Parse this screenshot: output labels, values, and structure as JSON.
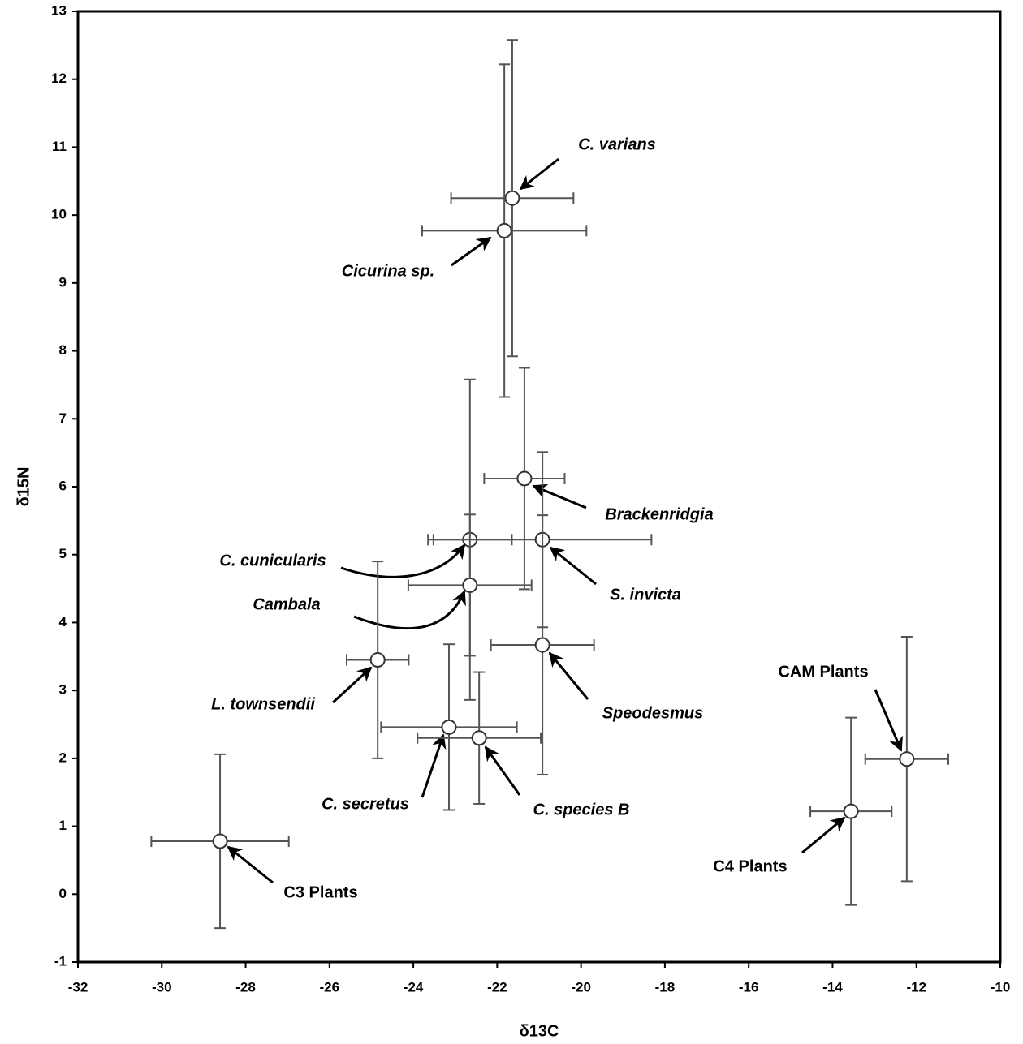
{
  "chart_data": {
    "type": "scatter",
    "xlabel": "δ13C",
    "ylabel": "δ15N",
    "xlim": [
      -32,
      -10
    ],
    "xticks": [
      -32,
      -30,
      -28,
      -26,
      -24,
      -22,
      -20,
      -18,
      -16,
      -14,
      -12,
      -10
    ],
    "ylim": [
      -1,
      13
    ],
    "yticks": [
      -1,
      0,
      1,
      2,
      3,
      4,
      5,
      6,
      7,
      8,
      9,
      10,
      11,
      12,
      13
    ],
    "color": "#ffffff",
    "points": [
      {
        "name": "C. varians",
        "italic": true,
        "x": -21.64,
        "y": 10.25,
        "xerr": 1.46,
        "yerr": 2.33
      },
      {
        "name": "Cicurina sp.",
        "italic": true,
        "x": -21.83,
        "y": 9.77,
        "xerr": 1.96,
        "yerr": 2.45
      },
      {
        "name": "Brackenridgia",
        "italic": true,
        "x": -21.35,
        "y": 6.12,
        "xerr": 0.96,
        "yerr": 1.63
      },
      {
        "name": "C. cunicularis",
        "italic": true,
        "x": -22.65,
        "y": 5.22,
        "xerr": 1.0,
        "yerr": 2.36
      },
      {
        "name": "S. invicta",
        "italic": true,
        "x": -20.92,
        "y": 5.22,
        "xerr": 2.6,
        "yerr": 1.29
      },
      {
        "name": "Cambala",
        "italic": true,
        "x": -22.65,
        "y": 4.55,
        "xerr": 1.47,
        "yerr": 1.04
      },
      {
        "name": "L. townsendii",
        "italic": true,
        "x": -24.85,
        "y": 3.45,
        "xerr": 0.74,
        "yerr": 1.45
      },
      {
        "name": "Speodesmus",
        "italic": true,
        "x": -20.92,
        "y": 3.67,
        "xerr": 1.23,
        "yerr": 1.91
      },
      {
        "name": "C. secretus",
        "italic": true,
        "x": -23.15,
        "y": 2.46,
        "xerr": 1.62,
        "yerr": 1.22
      },
      {
        "name": "C. species B",
        "italic": true,
        "x": -22.43,
        "y": 2.3,
        "xerr": 1.47,
        "yerr": 0.97
      },
      {
        "name": "C3 Plants",
        "italic": false,
        "x": -28.61,
        "y": 0.78,
        "xerr": 1.64,
        "yerr": 1.28
      },
      {
        "name": "C4 Plants",
        "italic": false,
        "x": -13.56,
        "y": 1.22,
        "xerr": 0.97,
        "yerr": 1.38
      },
      {
        "name": "CAM Plants",
        "italic": false,
        "x": -12.23,
        "y": 1.99,
        "xerr": 0.99,
        "yerr": 1.8
      }
    ]
  }
}
